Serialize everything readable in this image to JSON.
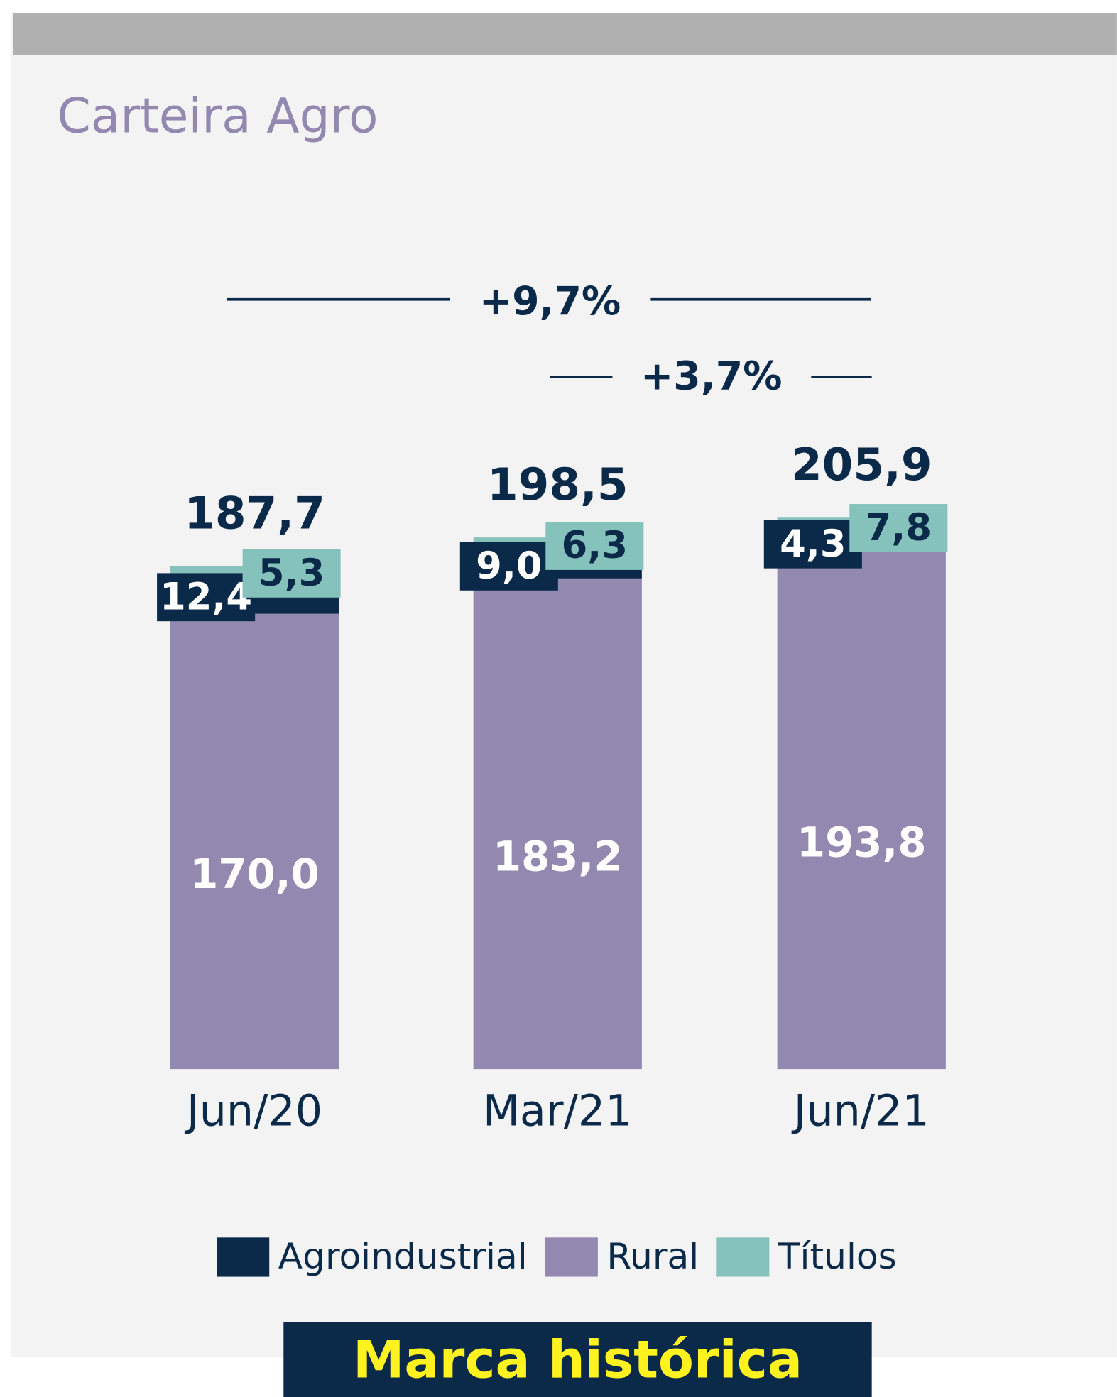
{
  "chart_data": {
    "type": "stacked-bar",
    "title": "Carteira Agro",
    "categories": [
      "Jun/20",
      "Mar/21",
      "Jun/21"
    ],
    "series": [
      {
        "name": "Rural",
        "color": "#9288b0",
        "values": [
          170.0,
          183.2,
          193.8
        ],
        "value_labels": [
          "170,0",
          "183,2",
          "193,8"
        ]
      },
      {
        "name": "Agroindustrial",
        "color": "#0b2a4a",
        "values": [
          12.4,
          9.0,
          4.3
        ],
        "value_labels": [
          "12,4",
          "9,0",
          "4,3"
        ]
      },
      {
        "name": "Títulos",
        "color": "#86c2bc",
        "values": [
          5.3,
          6.3,
          7.8
        ],
        "value_labels": [
          "5,3",
          "6,3",
          "7,8"
        ]
      }
    ],
    "legend_order": [
      1,
      0,
      2
    ],
    "totals": [
      187.7,
      198.5,
      205.9
    ],
    "total_labels": [
      "187,7",
      "198,5",
      "205,9"
    ],
    "annotations": [
      "+9,7%",
      "+3,7%"
    ],
    "banner": "Marca histórica"
  }
}
